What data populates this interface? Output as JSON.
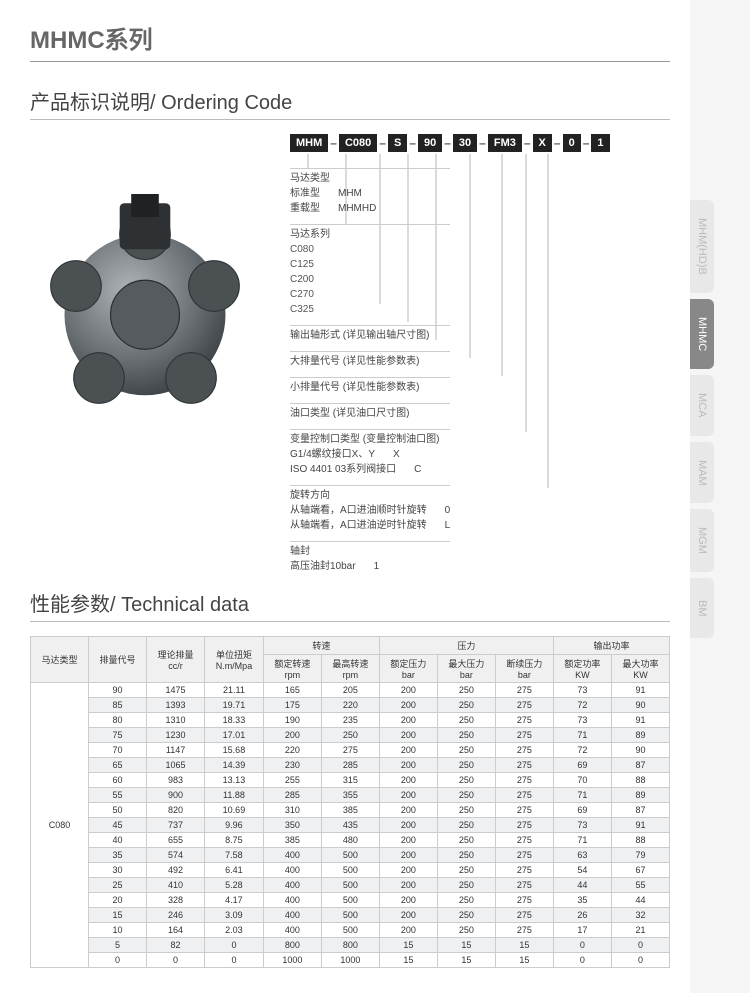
{
  "page": {
    "series_title": "MHMC系列",
    "ordering_title": "产品标识说明/ Ordering Code",
    "tech_title": "性能参数/ Technical data"
  },
  "side_tabs": [
    {
      "label": "MHM(HD)B",
      "active": false
    },
    {
      "label": "MHMC",
      "active": true
    },
    {
      "label": "MCA",
      "active": false
    },
    {
      "label": "MAM",
      "active": false
    },
    {
      "label": "MGM",
      "active": false
    },
    {
      "label": "BM",
      "active": false
    }
  ],
  "code_segments": [
    "MHM",
    "C080",
    "S",
    "90",
    "30",
    "FM3",
    "X",
    "0",
    "1"
  ],
  "legend": {
    "g1": {
      "title": "马达类型",
      "r1a": "标准型",
      "r1b": "MHM",
      "r2a": "重载型",
      "r2b": "MHMHD"
    },
    "g2": {
      "title": "马达系列",
      "items": [
        "C080",
        "C125",
        "C200",
        "C270",
        "C325"
      ]
    },
    "g3": {
      "title": "输出轴形式 (详见输出轴尺寸图)"
    },
    "g4": {
      "title": "大排量代号 (详见性能参数表)"
    },
    "g5": {
      "title": "小排量代号 (详见性能参数表)"
    },
    "g6": {
      "title": "油口类型 (详见油口尺寸图)"
    },
    "g7": {
      "title": "变量控制口类型 (变量控制油口图)",
      "r1a": "G1/4螺纹接口X、Y",
      "r1b": "X",
      "r2a": "ISO 4401 03系列阀接口",
      "r2b": "C"
    },
    "g8": {
      "title": "旋转方向",
      "r1a": "从轴端看，A口进油顺时针旋转",
      "r1b": "0",
      "r2a": "从轴端看，A口进油逆时针旋转",
      "r2b": "L"
    },
    "g9": {
      "title": "轴封",
      "r1a": "高压油封10bar",
      "r1b": "1"
    }
  },
  "tech": {
    "col_motor": "马达类型",
    "col_disp_code": "排量代号",
    "col_disp": "理论排量",
    "col_disp_unit": "cc/r",
    "col_torque": "单位扭矩",
    "col_torque_unit": "N.m/Mpa",
    "grp_speed": "转速",
    "grp_pressure": "压力",
    "grp_power": "输出功率",
    "col_rated_rpm": "额定转速",
    "col_max_rpm": "最高转速",
    "unit_rpm": "rpm",
    "col_rated_bar": "额定压力",
    "col_max_bar": "最大压力",
    "col_int_bar": "断续压力",
    "unit_bar": "bar",
    "col_rated_kw": "额定功率",
    "col_max_kw": "最大功率",
    "unit_kw": "KW",
    "motor_type": "C080",
    "rows": [
      [
        "90",
        "1475",
        "21.11",
        "165",
        "205",
        "200",
        "250",
        "275",
        "73",
        "91"
      ],
      [
        "85",
        "1393",
        "19.71",
        "175",
        "220",
        "200",
        "250",
        "275",
        "72",
        "90"
      ],
      [
        "80",
        "1310",
        "18.33",
        "190",
        "235",
        "200",
        "250",
        "275",
        "73",
        "91"
      ],
      [
        "75",
        "1230",
        "17.01",
        "200",
        "250",
        "200",
        "250",
        "275",
        "71",
        "89"
      ],
      [
        "70",
        "1147",
        "15.68",
        "220",
        "275",
        "200",
        "250",
        "275",
        "72",
        "90"
      ],
      [
        "65",
        "1065",
        "14.39",
        "230",
        "285",
        "200",
        "250",
        "275",
        "69",
        "87"
      ],
      [
        "60",
        "983",
        "13.13",
        "255",
        "315",
        "200",
        "250",
        "275",
        "70",
        "88"
      ],
      [
        "55",
        "900",
        "11.88",
        "285",
        "355",
        "200",
        "250",
        "275",
        "71",
        "89"
      ],
      [
        "50",
        "820",
        "10.69",
        "310",
        "385",
        "200",
        "250",
        "275",
        "69",
        "87"
      ],
      [
        "45",
        "737",
        "9.96",
        "350",
        "435",
        "200",
        "250",
        "275",
        "73",
        "91"
      ],
      [
        "40",
        "655",
        "8.75",
        "385",
        "480",
        "200",
        "250",
        "275",
        "71",
        "88"
      ],
      [
        "35",
        "574",
        "7.58",
        "400",
        "500",
        "200",
        "250",
        "275",
        "63",
        "79"
      ],
      [
        "30",
        "492",
        "6.41",
        "400",
        "500",
        "200",
        "250",
        "275",
        "54",
        "67"
      ],
      [
        "25",
        "410",
        "5.28",
        "400",
        "500",
        "200",
        "250",
        "275",
        "44",
        "55"
      ],
      [
        "20",
        "328",
        "4.17",
        "400",
        "500",
        "200",
        "250",
        "275",
        "35",
        "44"
      ],
      [
        "15",
        "246",
        "3.09",
        "400",
        "500",
        "200",
        "250",
        "275",
        "26",
        "32"
      ],
      [
        "10",
        "164",
        "2.03",
        "400",
        "500",
        "200",
        "250",
        "275",
        "17",
        "21"
      ],
      [
        "5",
        "82",
        "0",
        "800",
        "800",
        "15",
        "15",
        "15",
        "0",
        "0"
      ],
      [
        "0",
        "0",
        "0",
        "1000",
        "1000",
        "15",
        "15",
        "15",
        "0",
        "0"
      ]
    ]
  },
  "colors": {
    "code_bg": "#222222",
    "tab_active_bg": "#888888",
    "tab_inactive_bg": "#e8e8e8",
    "row_alt": "#eef0f2",
    "border": "#cccccc"
  }
}
